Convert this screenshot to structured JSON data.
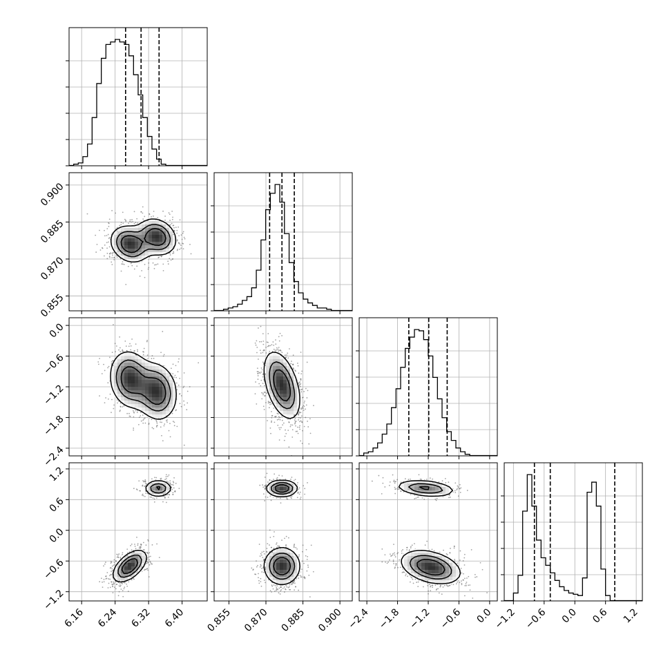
{
  "chart_data": {
    "type": "corner",
    "parameters": [
      {
        "range": [
          6.13,
          6.46
        ],
        "ticks": [
          6.16,
          6.24,
          6.32,
          6.4
        ],
        "tick_labels": [
          "6.16",
          "6.24",
          "6.32",
          "6.40"
        ],
        "quantiles": [
          6.265,
          6.302,
          6.345
        ],
        "hist_edges_start": 6.13,
        "hist_bin_width": 0.011,
        "hist": [
          0.0,
          0.01,
          0.02,
          0.07,
          0.17,
          0.38,
          0.65,
          0.85,
          0.96,
          0.98,
          1.0,
          0.98,
          0.96,
          0.87,
          0.72,
          0.56,
          0.38,
          0.23,
          0.13,
          0.05,
          0.01,
          0.0,
          0.0,
          0.0,
          0.0,
          0.0,
          0.0,
          0.0,
          0.0,
          0.0
        ]
      },
      {
        "range": [
          0.849,
          0.905
        ],
        "ticks": [
          0.855,
          0.87,
          0.885,
          0.9
        ],
        "tick_labels": [
          "0.855",
          "0.870",
          "0.885",
          "0.900"
        ],
        "quantiles": [
          0.8715,
          0.8765,
          0.8815
        ],
        "hist_edges_start": 0.849,
        "hist_bin_width": 0.0019,
        "hist": [
          0.0,
          0.0,
          0.01,
          0.02,
          0.03,
          0.05,
          0.08,
          0.11,
          0.18,
          0.32,
          0.56,
          0.8,
          0.93,
          1.0,
          0.86,
          0.61,
          0.38,
          0.23,
          0.14,
          0.09,
          0.06,
          0.04,
          0.02,
          0.02,
          0.01,
          0.0,
          0.0,
          0.0,
          0.0,
          0.0
        ]
      },
      {
        "range": [
          -2.55,
          0.15
        ],
        "ticks": [
          -2.4,
          -1.8,
          -1.2,
          -0.6,
          0.0
        ],
        "tick_labels": [
          "−2.4",
          "−1.8",
          "−1.2",
          "−0.6",
          "0.0"
        ],
        "quantiles": [
          -1.58,
          -1.19,
          -0.83
        ],
        "hist_edges_start": -2.55,
        "hist_bin_width": 0.09,
        "hist": [
          0.0,
          0.02,
          0.03,
          0.06,
          0.1,
          0.17,
          0.25,
          0.38,
          0.53,
          0.7,
          0.85,
          0.94,
          1.0,
          0.99,
          0.92,
          0.79,
          0.62,
          0.45,
          0.3,
          0.19,
          0.12,
          0.06,
          0.03,
          0.01,
          0.0,
          0.0,
          0.0,
          0.0,
          0.0,
          0.0
        ]
      },
      {
        "range": [
          -1.38,
          1.32
        ],
        "ticks": [
          -1.2,
          -0.6,
          0.0,
          0.6,
          1.2
        ],
        "tick_labels": [
          "−1.2",
          "−0.6",
          "0.0",
          "0.6",
          "1.2"
        ],
        "quantiles": [
          -0.79,
          -0.48,
          0.78
        ],
        "hist_edges_start": -1.38,
        "hist_bin_width": 0.09,
        "hist": [
          0.0,
          0.0,
          0.06,
          0.2,
          0.71,
          1.0,
          0.75,
          0.48,
          0.34,
          0.28,
          0.22,
          0.16,
          0.11,
          0.08,
          0.06,
          0.05,
          0.04,
          0.18,
          0.86,
          0.94,
          0.75,
          0.25,
          0.04,
          0.0,
          0.0,
          0.0,
          0.0,
          0.0,
          0.0,
          0.0
        ]
      }
    ],
    "diag_y_ticks": 5,
    "blobs": {
      "1_0": [
        {
          "mx": 6.275,
          "my": 0.876,
          "sx": 0.025,
          "sy": 0.004,
          "r": -0.2,
          "w": 0.5
        },
        {
          "mx": 6.34,
          "my": 0.879,
          "sx": 0.025,
          "sy": 0.004,
          "r": -0.2,
          "w": 0.5
        }
      ],
      "2_0": [
        {
          "mx": 6.275,
          "my": -1.05,
          "sx": 0.026,
          "sy": 0.3,
          "r": -0.1,
          "w": 0.5
        },
        {
          "mx": 6.34,
          "my": -1.3,
          "sx": 0.026,
          "sy": 0.3,
          "r": -0.1,
          "w": 0.5
        }
      ],
      "2_1": [
        {
          "mx": 0.8765,
          "my": -1.17,
          "sx": 0.004,
          "sy": 0.36,
          "r": -0.45,
          "w": 1.0
        }
      ],
      "3_0": [
        {
          "mx": 6.275,
          "my": -0.7,
          "sx": 0.022,
          "sy": 0.17,
          "r": 0.55,
          "w": 0.72
        },
        {
          "mx": 6.343,
          "my": 0.82,
          "sx": 0.018,
          "sy": 0.09,
          "r": 0.0,
          "w": 0.28
        }
      ],
      "3_1": [
        {
          "mx": 0.8765,
          "my": -0.7,
          "sx": 0.004,
          "sy": 0.2,
          "r": 0.0,
          "w": 0.72
        },
        {
          "mx": 0.8765,
          "my": 0.82,
          "sx": 0.0035,
          "sy": 0.09,
          "r": 0.0,
          "w": 0.28
        }
      ],
      "3_2": [
        {
          "mx": -1.15,
          "my": -0.72,
          "sx": 0.32,
          "sy": 0.18,
          "r": -0.35,
          "w": 0.72
        },
        {
          "mx": -1.25,
          "my": 0.82,
          "sx": 0.32,
          "sy": 0.09,
          "r": -0.3,
          "w": 0.28
        }
      ]
    }
  }
}
